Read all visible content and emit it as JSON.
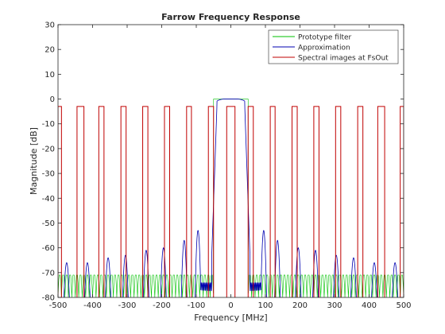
{
  "chart_data": {
    "type": "line",
    "title": "Farrow Frequency Response",
    "xlabel": "Frequency [MHz]",
    "ylabel": "Magnitude [dB]",
    "xlim": [
      -500,
      500
    ],
    "ylim": [
      -80,
      30
    ],
    "xticks": [
      -500,
      -400,
      -300,
      -200,
      -100,
      0,
      100,
      200,
      300,
      400,
      500
    ],
    "yticks": [
      -80,
      -70,
      -60,
      -50,
      -40,
      -30,
      -20,
      -10,
      0,
      10,
      20,
      30
    ],
    "grid": false,
    "legend_position": "top-right",
    "series": [
      {
        "name": "Prototype filter",
        "color": "#00c000",
        "passband_edge": 50,
        "passband_level": 0,
        "stopband_floor": -80,
        "stopband_peak": -71,
        "stopband_ripples_per_100MHz": 10
      },
      {
        "name": "Approximation",
        "color": "#0000b0",
        "passband_edge": 40,
        "passband_level": 0,
        "image_centers": [
          -475,
          -415,
          -355,
          -305,
          -245,
          -195,
          -135,
          -95,
          95,
          135,
          195,
          245,
          305,
          355,
          415,
          475
        ],
        "image_peaks": [
          -66,
          -66,
          -64,
          -63,
          -61,
          -60,
          -57,
          -53,
          -53,
          -57,
          -60,
          -61,
          -63,
          -64,
          -66,
          -66
        ]
      },
      {
        "name": "Spectral images at FsOut",
        "color": "#c00000",
        "level": -3,
        "floor": -80,
        "bands": [
          [
            -500,
            -490
          ],
          [
            -445,
            -425
          ],
          [
            -382,
            -367
          ],
          [
            -318,
            -303
          ],
          [
            -255,
            -240
          ],
          [
            -192,
            -177
          ],
          [
            -128,
            -114
          ],
          [
            -65,
            -50
          ],
          [
            -12,
            12
          ],
          [
            50,
            65
          ],
          [
            114,
            128
          ],
          [
            177,
            192
          ],
          [
            240,
            255
          ],
          [
            303,
            318
          ],
          [
            367,
            382
          ],
          [
            425,
            445
          ],
          [
            490,
            500
          ]
        ]
      }
    ]
  }
}
